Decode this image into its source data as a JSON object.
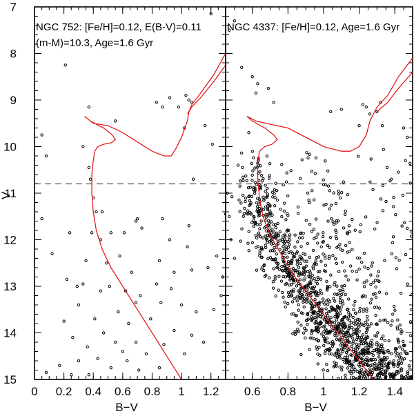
{
  "chart_data": [
    {
      "type": "scatter",
      "panel": "left",
      "annotation_lines": [
        "NGC 752: [Fe/H]=0.12, E(B-V)=0.11",
        "(m-M)=10.3, Age=1.6 Gyr"
      ],
      "xlabel": "B−V",
      "ylabel": "V",
      "xlim": [
        0,
        1.3
      ],
      "ylim": [
        15,
        7
      ],
      "y_inverted": true,
      "xticks": [
        {
          "v": 0,
          "t": "0"
        },
        {
          "v": 0.2,
          "t": "0.2"
        },
        {
          "v": 0.4,
          "t": "0.4"
        },
        {
          "v": 0.6,
          "t": "0.6"
        },
        {
          "v": 0.8,
          "t": "0.8"
        },
        {
          "v": 1.0,
          "t": "1"
        },
        {
          "v": 1.2,
          "t": "1.2"
        }
      ],
      "yticks": [
        {
          "v": 7,
          "t": "7"
        },
        {
          "v": 8,
          "t": "8"
        },
        {
          "v": 9,
          "t": "9"
        },
        {
          "v": 10,
          "t": "10"
        },
        {
          "v": 11,
          "t": "11"
        },
        {
          "v": 12,
          "t": "12"
        },
        {
          "v": 13,
          "t": "13"
        },
        {
          "v": 14,
          "t": "14"
        },
        {
          "v": 15,
          "t": "15"
        }
      ],
      "hline_dashed": 10.8,
      "isochrone": [
        [
          1.3,
          8.0
        ],
        [
          1.22,
          8.45
        ],
        [
          1.13,
          8.85
        ],
        [
          1.07,
          9.1
        ],
        [
          1.05,
          9.25
        ],
        [
          1.04,
          9.45
        ],
        [
          1.0,
          9.8
        ],
        [
          0.96,
          10.05
        ],
        [
          0.93,
          10.2
        ],
        [
          0.88,
          10.2
        ],
        [
          0.8,
          10.1
        ],
        [
          0.7,
          9.9
        ],
        [
          0.6,
          9.7
        ],
        [
          0.5,
          9.55
        ],
        [
          0.4,
          9.5
        ],
        [
          0.34,
          9.35
        ],
        [
          0.38,
          9.45
        ],
        [
          0.47,
          9.6
        ],
        [
          0.53,
          9.75
        ],
        [
          0.55,
          9.85
        ],
        [
          0.52,
          9.92
        ],
        [
          0.47,
          9.95
        ],
        [
          0.43,
          10.0
        ],
        [
          0.41,
          10.1
        ],
        [
          0.4,
          10.3
        ],
        [
          0.39,
          10.6
        ],
        [
          0.39,
          11.0
        ],
        [
          0.4,
          11.4
        ],
        [
          0.42,
          11.8
        ],
        [
          0.46,
          12.2
        ],
        [
          0.52,
          12.6
        ],
        [
          0.6,
          13.0
        ],
        [
          0.7,
          13.5
        ],
        [
          0.8,
          14.0
        ],
        [
          0.9,
          14.5
        ],
        [
          1.0,
          15.0
        ]
      ],
      "isochrone_2": [
        [
          1.3,
          8.25
        ],
        [
          1.22,
          8.6
        ],
        [
          1.13,
          8.95
        ],
        [
          1.07,
          9.15
        ],
        [
          1.04,
          9.3
        ]
      ],
      "stars": [
        [
          0.21,
          8.25
        ],
        [
          0.37,
          9.15
        ],
        [
          0.55,
          9.45
        ],
        [
          0.83,
          9.05
        ],
        [
          0.87,
          9.15
        ],
        [
          0.92,
          8.95
        ],
        [
          0.98,
          9.15
        ],
        [
          1.03,
          8.9
        ],
        [
          1.05,
          9.0
        ],
        [
          1.07,
          9.05
        ],
        [
          1.2,
          7.15
        ],
        [
          1.02,
          9.6
        ],
        [
          0.05,
          9.75
        ],
        [
          0.08,
          10.2
        ],
        [
          0.33,
          10.0
        ],
        [
          0.37,
          10.45
        ],
        [
          0.38,
          10.7
        ],
        [
          0.4,
          11.1
        ],
        [
          0.42,
          11.4
        ],
        [
          0.39,
          11.85
        ],
        [
          0.45,
          12.0
        ],
        [
          0.52,
          11.85
        ],
        [
          0.24,
          11.85
        ],
        [
          0.12,
          12.3
        ],
        [
          0.05,
          11.55
        ],
        [
          0.61,
          11.85
        ],
        [
          0.69,
          11.6
        ],
        [
          0.73,
          11.75
        ],
        [
          0.7,
          11.55
        ],
        [
          0.87,
          11.55
        ],
        [
          0.92,
          12.0
        ],
        [
          1.05,
          11.7
        ],
        [
          1.04,
          12.15
        ],
        [
          0.85,
          12.45
        ],
        [
          0.66,
          12.7
        ],
        [
          0.95,
          12.7
        ],
        [
          1.07,
          12.65
        ],
        [
          1.18,
          12.6
        ],
        [
          1.24,
          12.35
        ],
        [
          1.28,
          12.8
        ],
        [
          0.22,
          12.85
        ],
        [
          0.33,
          12.95
        ],
        [
          0.51,
          13.0
        ],
        [
          0.62,
          13.1
        ],
        [
          0.72,
          13.2
        ],
        [
          0.86,
          13.35
        ],
        [
          1.0,
          13.4
        ],
        [
          1.1,
          13.55
        ],
        [
          1.22,
          13.5
        ],
        [
          0.3,
          13.4
        ],
        [
          0.41,
          13.7
        ],
        [
          0.57,
          13.55
        ],
        [
          0.64,
          13.8
        ],
        [
          0.79,
          13.7
        ],
        [
          0.95,
          13.95
        ],
        [
          1.07,
          14.05
        ],
        [
          1.27,
          13.2
        ],
        [
          0.2,
          13.75
        ],
        [
          0.26,
          14.1
        ],
        [
          0.36,
          14.3
        ],
        [
          0.47,
          14.0
        ],
        [
          0.55,
          14.2
        ],
        [
          0.69,
          14.2
        ],
        [
          0.76,
          14.45
        ],
        [
          0.88,
          14.25
        ],
        [
          1.02,
          14.45
        ],
        [
          1.15,
          14.2
        ],
        [
          0.3,
          14.6
        ],
        [
          0.43,
          14.55
        ],
        [
          0.52,
          14.75
        ],
        [
          0.63,
          14.6
        ],
        [
          0.71,
          14.8
        ],
        [
          0.37,
          14.9
        ],
        [
          0.08,
          14.85
        ],
        [
          0.17,
          14.7
        ],
        [
          0.25,
          14.9
        ],
        [
          1.3,
          11.45
        ],
        [
          1.21,
          9.95
        ],
        [
          1.16,
          9.55
        ],
        [
          1.08,
          10.7
        ],
        [
          0.45,
          13.1
        ],
        [
          0.49,
          12.5
        ],
        [
          0.58,
          12.35
        ],
        [
          0.46,
          11.4
        ],
        [
          0.35,
          12.45
        ],
        [
          0.29,
          13.0
        ],
        [
          0.69,
          13.35
        ],
        [
          0.83,
          12.95
        ],
        [
          0.93,
          13.05
        ],
        [
          0.6,
          14.4
        ],
        [
          0.85,
          14.75
        ]
      ]
    },
    {
      "type": "scatter",
      "panel": "right",
      "annotation_lines": [
        "NGC 4337: [Fe/H]=0.12, Age=1.6 Gyr"
      ],
      "xlabel": "B−V",
      "ylabel": "",
      "xlim": [
        0.45,
        1.5
      ],
      "ylim": [
        15,
        7
      ],
      "y_inverted": true,
      "xticks": [
        {
          "v": 0.6,
          "t": "0.6"
        },
        {
          "v": 0.8,
          "t": "0.8"
        },
        {
          "v": 1.0,
          "t": "1"
        },
        {
          "v": 1.2,
          "t": "1.2"
        },
        {
          "v": 1.4,
          "t": "1.4"
        }
      ],
      "yticks": [
        {
          "v": 7,
          "t": ""
        },
        {
          "v": 8,
          "t": ""
        },
        {
          "v": 9,
          "t": ""
        },
        {
          "v": 10,
          "t": ""
        },
        {
          "v": 11,
          "t": ""
        },
        {
          "v": 12,
          "t": ""
        },
        {
          "v": 13,
          "t": ""
        },
        {
          "v": 14,
          "t": ""
        },
        {
          "v": 15,
          "t": ""
        }
      ],
      "hline_dashed": 10.8,
      "isochrone": [
        [
          1.5,
          8.1
        ],
        [
          1.42,
          8.5
        ],
        [
          1.36,
          8.9
        ],
        [
          1.3,
          9.15
        ],
        [
          1.28,
          9.3
        ],
        [
          1.26,
          9.45
        ],
        [
          1.24,
          9.75
        ],
        [
          1.2,
          10.0
        ],
        [
          1.15,
          10.1
        ],
        [
          1.1,
          10.1
        ],
        [
          1.0,
          10.0
        ],
        [
          0.9,
          9.8
        ],
        [
          0.8,
          9.6
        ],
        [
          0.7,
          9.52
        ],
        [
          0.62,
          9.45
        ],
        [
          0.57,
          9.35
        ],
        [
          0.6,
          9.45
        ],
        [
          0.67,
          9.6
        ],
        [
          0.72,
          9.75
        ],
        [
          0.74,
          9.85
        ],
        [
          0.71,
          9.95
        ],
        [
          0.67,
          10.0
        ],
        [
          0.64,
          10.1
        ],
        [
          0.63,
          10.35
        ],
        [
          0.63,
          10.7
        ],
        [
          0.64,
          11.1
        ],
        [
          0.66,
          11.5
        ],
        [
          0.7,
          11.9
        ],
        [
          0.76,
          12.3
        ],
        [
          0.82,
          12.7
        ],
        [
          0.9,
          13.1
        ],
        [
          0.98,
          13.5
        ],
        [
          1.06,
          13.9
        ],
        [
          1.14,
          14.3
        ],
        [
          1.22,
          14.7
        ],
        [
          1.28,
          15.0
        ]
      ],
      "isochrone_2": [
        [
          1.5,
          8.4
        ],
        [
          1.42,
          8.75
        ],
        [
          1.36,
          9.05
        ],
        [
          1.3,
          9.25
        ]
      ],
      "stars": [
        [
          0.47,
          7.5
        ],
        [
          0.5,
          7.3
        ],
        [
          0.54,
          8.3
        ],
        [
          0.6,
          8.5
        ],
        [
          0.63,
          8.65
        ],
        [
          0.62,
          8.85
        ],
        [
          0.69,
          8.75
        ],
        [
          0.72,
          9.05
        ],
        [
          1.22,
          9.1
        ],
        [
          1.24,
          9.15
        ],
        [
          1.26,
          9.3
        ],
        [
          1.3,
          9.25
        ],
        [
          1.32,
          9.05
        ],
        [
          1.33,
          9.55
        ],
        [
          1.2,
          9.55
        ],
        [
          1.1,
          9.2
        ],
        [
          1.04,
          9.25
        ],
        [
          1.47,
          9.8
        ],
        [
          1.46,
          10.3
        ],
        [
          1.42,
          10.55
        ],
        [
          1.38,
          10.7
        ],
        [
          1.45,
          9.6
        ],
        [
          0.58,
          9.7
        ],
        [
          0.52,
          10.4
        ],
        [
          0.53,
          10.85
        ],
        [
          0.46,
          11.0
        ],
        [
          0.47,
          11.5
        ],
        [
          0.55,
          11.5
        ],
        [
          0.48,
          12.0
        ],
        [
          0.5,
          12.4
        ]
      ],
      "cloud_note": "dense main-sequence cloud (rendered procedurally)"
    }
  ]
}
